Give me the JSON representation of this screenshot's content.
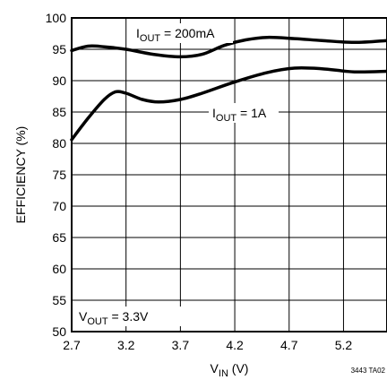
{
  "chart_data": {
    "type": "line",
    "xlabel": {
      "main": "V",
      "sub": "IN",
      "unit": " (V)"
    },
    "ylabel": "EFFICIENCY (%)",
    "xlim": [
      2.7,
      5.6
    ],
    "ylim": [
      50,
      100
    ],
    "xticks": [
      2.7,
      3.2,
      3.7,
      4.2,
      4.7,
      5.2
    ],
    "xtick_labels": [
      "2.7",
      "3.2",
      "3.7",
      "4.2",
      "4.7",
      "5.2"
    ],
    "yticks": [
      50,
      55,
      60,
      65,
      70,
      75,
      80,
      85,
      90,
      95,
      100
    ],
    "ytick_labels": [
      "50",
      "55",
      "60",
      "65",
      "70",
      "75",
      "80",
      "85",
      "90",
      "95",
      "100"
    ],
    "grid": true,
    "series": [
      {
        "label": {
          "main": "I",
          "sub": "OUT",
          "rest": " = 200mA"
        },
        "x": [
          2.7,
          2.85,
          3.0,
          3.2,
          3.45,
          3.7,
          3.9,
          4.1,
          4.3,
          4.5,
          4.75,
          5.0,
          5.3,
          5.6
        ],
        "y": [
          94.8,
          95.5,
          95.4,
          95.0,
          94.2,
          93.8,
          94.2,
          95.6,
          96.5,
          96.9,
          96.7,
          96.4,
          96.1,
          96.4
        ]
      },
      {
        "label": {
          "main": "I",
          "sub": "OUT",
          "rest": " = 1A"
        },
        "x": [
          2.7,
          2.85,
          3.0,
          3.1,
          3.2,
          3.35,
          3.5,
          3.7,
          3.9,
          4.2,
          4.5,
          4.75,
          5.0,
          5.3,
          5.6
        ],
        "y": [
          80.6,
          84.0,
          87.0,
          88.2,
          88.0,
          87.0,
          86.6,
          87.0,
          88.0,
          89.8,
          91.3,
          92.0,
          91.9,
          91.4,
          91.5
        ]
      }
    ],
    "annotation": {
      "main": "V",
      "sub": "OUT",
      "rest": " = 3.3V"
    },
    "figure_code": "3443 TA02"
  }
}
